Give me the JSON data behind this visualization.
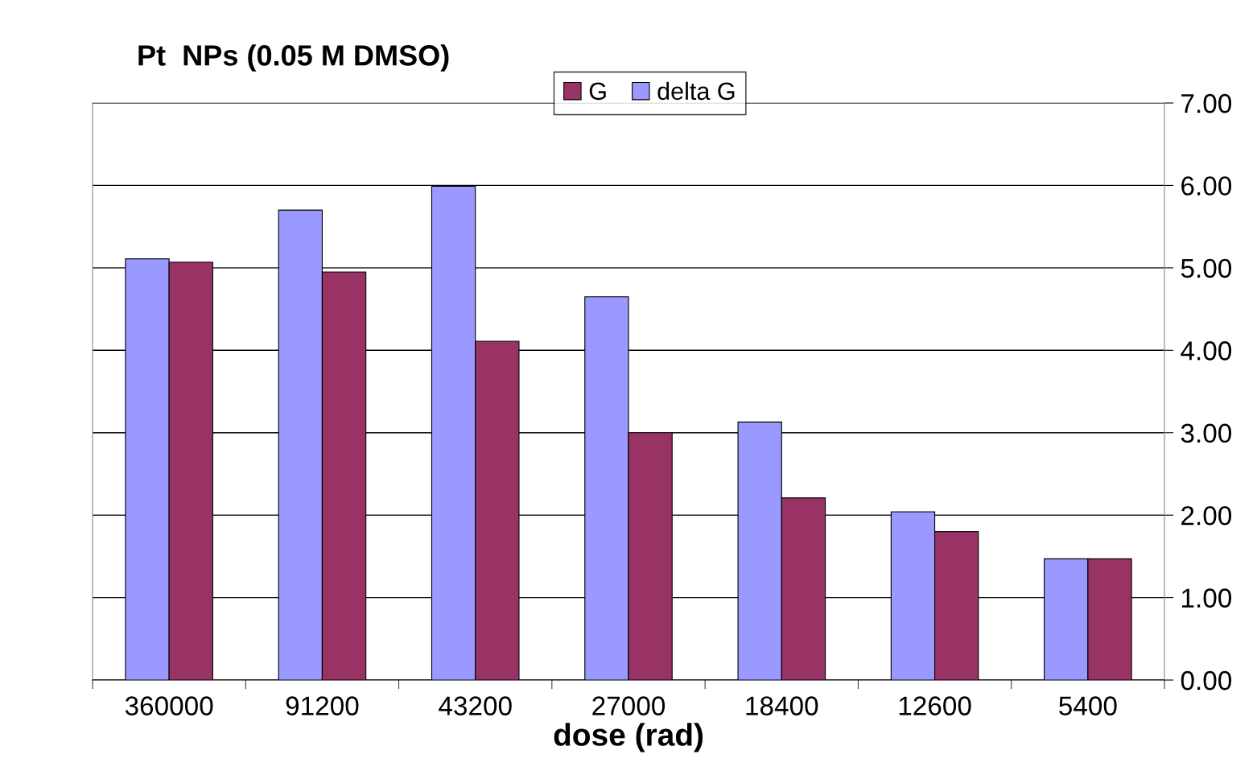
{
  "chart_data": {
    "type": "bar",
    "title": "Pt  NPs (0.05 M DMSO)",
    "xlabel": "dose (rad)",
    "categories": [
      "360000",
      "91200",
      "43200",
      "27000",
      "18400",
      "12600",
      "5400"
    ],
    "series": [
      {
        "name": "delta G",
        "color": "#9999ff",
        "values": [
          5.11,
          5.7,
          5.99,
          4.65,
          3.13,
          2.04,
          1.47
        ]
      },
      {
        "name": "G",
        "color": "#993366",
        "values": [
          5.07,
          4.95,
          4.11,
          3.0,
          2.21,
          1.8,
          1.47
        ]
      }
    ],
    "ylim": [
      0,
      7
    ],
    "yticks": [
      {
        "value": 0,
        "label": "0.00"
      },
      {
        "value": 1,
        "label": "1.00"
      },
      {
        "value": 2,
        "label": "2.00"
      },
      {
        "value": 3,
        "label": "3.00"
      },
      {
        "value": 4,
        "label": "4.00"
      },
      {
        "value": 5,
        "label": "5.00"
      },
      {
        "value": 6,
        "label": "6.00"
      },
      {
        "value": 7,
        "label": "7.00"
      }
    ],
    "grid": "y",
    "legend": "top"
  }
}
